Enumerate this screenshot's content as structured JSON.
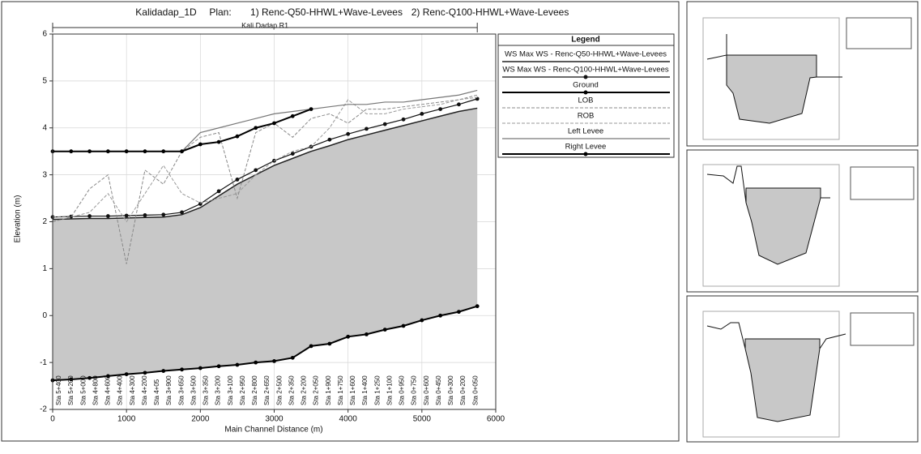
{
  "chart_data": {
    "type": "line",
    "title": "Kalidadap_1D",
    "plan_label": "Plan:",
    "plans": [
      "1) Renc-Q50-HHWL+Wave-Levees",
      "2) Renc-Q100-HHWL+Wave-Levees"
    ],
    "reach_label": "Kali Dadap R1",
    "x_label": "Main Channel Distance (m)",
    "y_label": "Elevation (m)",
    "legend_title": "Legend",
    "legend_position": "right",
    "grid": true,
    "water_fill_color": "#c8c8c8",
    "xlim": [
      0,
      6000
    ],
    "xticks": [
      0,
      1000,
      2000,
      3000,
      4000,
      5000,
      6000
    ],
    "ylim": [
      -2,
      6
    ],
    "yticks": [
      -2,
      -1,
      0,
      1,
      2,
      3,
      4,
      5,
      6
    ],
    "station_labels": [
      "Sta 5+400",
      "Sta 5+200",
      "Sta 5+000",
      "Sta 4+800",
      "Sta 4+600",
      "Sta 4+400",
      "Sta 4+300",
      "Sta 4+200",
      "Sta 4+05",
      "Sta 3+900",
      "Sta 3+650",
      "Sta 3+500",
      "Sta 3+350",
      "Sta 3+200",
      "Sta 3+100",
      "Sta 2+950",
      "Sta 2+800",
      "Sta 2+650",
      "Sta 2+500",
      "Sta 2+350",
      "Sta 2+200",
      "Sta 2+050",
      "Sta 1+900",
      "Sta 1+750",
      "Sta 1+600",
      "Sta 1+400",
      "Sta 1+250",
      "Sta 1+100",
      "Sta 0+950",
      "Sta 0+750",
      "Sta 0+600",
      "Sta 0+450",
      "Sta 0+300",
      "Sta 0+200",
      "Sta 0+050"
    ],
    "x": [
      0,
      250,
      500,
      750,
      1000,
      1250,
      1500,
      1750,
      2000,
      2250,
      2500,
      2750,
      3000,
      3250,
      3500,
      3750,
      4000,
      4250,
      4500,
      4750,
      5000,
      5250,
      5500,
      5750
    ],
    "series": [
      {
        "name": "WS  Max WS - Renc-Q50-HHWL+Wave-Levees",
        "color": "#222222",
        "width": 1.5,
        "dashed": false,
        "marker": false,
        "values": [
          2.05,
          2.06,
          2.07,
          2.07,
          2.08,
          2.09,
          2.1,
          2.15,
          2.3,
          2.55,
          2.8,
          3.0,
          3.2,
          3.35,
          3.5,
          3.62,
          3.75,
          3.85,
          3.95,
          4.05,
          4.15,
          4.25,
          4.35,
          4.42
        ]
      },
      {
        "name": "WS  Max WS - Renc-Q100-HHWL+Wave-Levees",
        "color": "#111111",
        "width": 1.2,
        "dashed": false,
        "marker": true,
        "values": [
          2.1,
          2.11,
          2.12,
          2.12,
          2.13,
          2.14,
          2.15,
          2.2,
          2.38,
          2.65,
          2.9,
          3.1,
          3.3,
          3.45,
          3.6,
          3.75,
          3.87,
          3.98,
          4.08,
          4.18,
          4.3,
          4.4,
          4.5,
          4.62
        ]
      },
      {
        "name": "Ground",
        "color": "#000000",
        "width": 2,
        "dashed": false,
        "marker": true,
        "values": [
          -1.38,
          -1.36,
          -1.33,
          -1.29,
          -1.25,
          -1.22,
          -1.18,
          -1.15,
          -1.12,
          -1.08,
          -1.05,
          -1.0,
          -0.97,
          -0.9,
          -0.65,
          -0.6,
          -0.45,
          -0.4,
          -0.3,
          -0.22,
          -0.1,
          0.0,
          0.08,
          0.2
        ]
      },
      {
        "name": "LOB",
        "color": "#888888",
        "width": 1,
        "dashed": true,
        "marker": false,
        "values": [
          2.0,
          2.1,
          2.7,
          3.0,
          1.1,
          3.1,
          2.8,
          3.5,
          3.8,
          3.9,
          2.5,
          3.9,
          4.1,
          3.8,
          4.2,
          4.3,
          4.1,
          4.4,
          4.4,
          4.45,
          4.5,
          4.55,
          4.6,
          4.7
        ]
      },
      {
        "name": "ROB",
        "color": "#999999",
        "width": 1,
        "dashed": true,
        "marker": false,
        "values": [
          2.1,
          2.1,
          2.2,
          2.6,
          2.0,
          2.6,
          3.2,
          2.6,
          2.4,
          2.5,
          2.6,
          3.0,
          3.3,
          3.5,
          3.6,
          4.0,
          4.6,
          4.3,
          4.3,
          4.4,
          4.45,
          4.5,
          4.6,
          4.65
        ]
      },
      {
        "name": "Left Levee",
        "color": "#777777",
        "width": 1.2,
        "dashed": false,
        "marker": false,
        "values": [
          null,
          null,
          null,
          null,
          null,
          null,
          null,
          3.5,
          3.9,
          4.0,
          4.1,
          4.2,
          4.3,
          4.35,
          4.4,
          4.45,
          4.5,
          4.5,
          4.55,
          4.55,
          4.6,
          4.65,
          4.7,
          4.8
        ]
      },
      {
        "name": "Right Levee",
        "color": "#000000",
        "width": 2,
        "dashed": false,
        "marker": true,
        "values": [
          3.5,
          3.5,
          3.5,
          3.5,
          3.5,
          3.5,
          3.5,
          3.5,
          3.65,
          3.7,
          3.82,
          4.0,
          4.1,
          4.25,
          4.4,
          null,
          null,
          null,
          null,
          null,
          null,
          null,
          null,
          null
        ]
      }
    ]
  }
}
